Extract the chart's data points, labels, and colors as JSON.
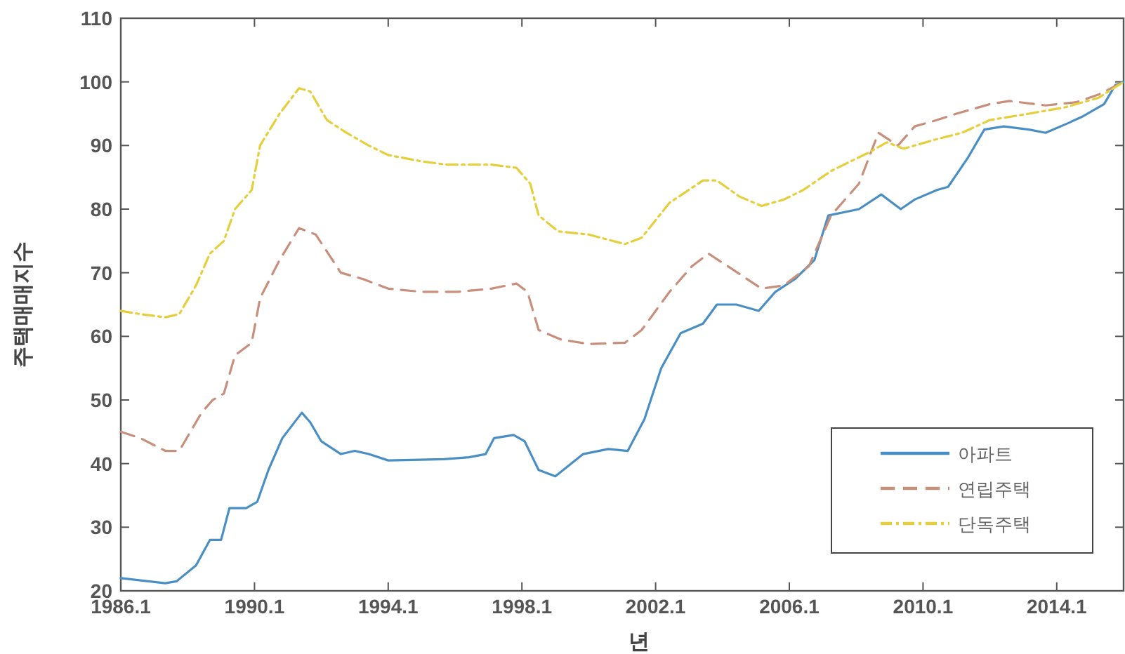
{
  "chart_data": {
    "type": "line",
    "xlabel": "년",
    "ylabel": "주택매매지수",
    "xlim": [
      "1986-01",
      "2016-01"
    ],
    "ylim": [
      20,
      110
    ],
    "xticks": [
      {
        "value": "1986-01",
        "label": "1986.1"
      },
      {
        "value": "1990-01",
        "label": "1990.1"
      },
      {
        "value": "1994-01",
        "label": "1994.1"
      },
      {
        "value": "1998-01",
        "label": "1998.1"
      },
      {
        "value": "2002-01",
        "label": "2002.1"
      },
      {
        "value": "2006-01",
        "label": "2006.1"
      },
      {
        "value": "2010-01",
        "label": "2010.1"
      },
      {
        "value": "2014-01",
        "label": "2014.1"
      }
    ],
    "yticks": [
      20,
      30,
      40,
      50,
      60,
      70,
      80,
      90,
      100,
      110
    ],
    "grid": false,
    "legend": "bottom right",
    "marker": "none",
    "series": [
      {
        "name": "아파트",
        "color": "#4a8fc4",
        "line_style": "solid",
        "x": [
          "1986-01",
          "1987-05",
          "1987-09",
          "1988-04",
          "1988-09",
          "1989-01",
          "1989-04",
          "1989-10",
          "1990-02",
          "1990-06",
          "1990-11",
          "1991-06",
          "1991-09",
          "1992-01",
          "1992-08",
          "1993-01",
          "1993-06",
          "1994-01",
          "1995-09",
          "1996-06",
          "1996-12",
          "1997-03",
          "1997-10",
          "1998-02",
          "1998-07",
          "1999-01",
          "1999-11",
          "2000-08",
          "2001-03",
          "2001-09",
          "2002-03",
          "2002-10",
          "2003-06",
          "2003-11",
          "2004-06",
          "2005-02",
          "2005-08",
          "2006-03",
          "2006-10",
          "2007-03",
          "2008-02",
          "2008-10",
          "2009-05",
          "2009-10",
          "2010-06",
          "2010-10",
          "2011-05",
          "2011-11",
          "2012-06",
          "2013-03",
          "2013-09",
          "2014-05",
          "2014-10",
          "2015-06",
          "2015-10",
          "2016-01"
        ],
        "values": [
          22,
          21.2,
          21.5,
          24,
          28,
          28,
          33,
          33,
          34,
          39,
          44,
          48,
          46.5,
          43.5,
          41.5,
          42,
          41.5,
          40.5,
          40.7,
          41,
          41.5,
          44,
          44.5,
          43.5,
          39,
          38,
          41.5,
          42.3,
          42,
          47,
          55,
          60.5,
          62,
          65,
          65,
          64,
          67,
          69,
          72,
          79,
          80,
          82.3,
          80,
          81.5,
          83,
          83.5,
          88,
          92.5,
          93,
          92.5,
          92,
          93.5,
          94.5,
          96.5,
          99.5,
          100
        ]
      },
      {
        "name": "연립주택",
        "color": "#c8907c",
        "line_style": "dashed",
        "x": [
          "1986-01",
          "1986-08",
          "1987-05",
          "1987-10",
          "1988-06",
          "1988-10",
          "1989-02",
          "1989-06",
          "1989-12",
          "1990-03",
          "1990-10",
          "1991-05",
          "1991-11",
          "1992-08",
          "1993-04",
          "1994-01",
          "1995-01",
          "1996-02",
          "1997-02",
          "1997-11",
          "1998-03",
          "1998-07",
          "1999-03",
          "2000-01",
          "2001-02",
          "2001-08",
          "2002-06",
          "2003-02",
          "2003-08",
          "2004-03",
          "2005-03",
          "2005-11",
          "2006-08",
          "2007-04",
          "2008-02",
          "2008-09",
          "2009-04",
          "2009-10",
          "2010-06",
          "2011-01",
          "2012-01",
          "2012-08",
          "2013-09",
          "2014-08",
          "2015-04",
          "2016-01"
        ],
        "values": [
          45,
          44,
          42,
          42,
          48,
          50,
          51,
          57,
          59,
          66,
          72,
          77,
          76,
          70,
          69,
          67.5,
          67,
          67,
          67.5,
          68.3,
          67,
          61,
          59.5,
          58.8,
          59,
          61,
          67,
          71,
          73,
          71,
          67.5,
          68,
          71,
          79,
          84,
          92,
          90,
          93,
          94,
          95,
          96.5,
          97,
          96.3,
          96.8,
          98,
          100
        ]
      },
      {
        "name": "단독주택",
        "color": "#e6cf3c",
        "line_style": "dashdot",
        "x": [
          "1986-01",
          "1986-08",
          "1987-05",
          "1987-10",
          "1988-04",
          "1988-09",
          "1989-02",
          "1989-06",
          "1989-12",
          "1990-03",
          "1990-10",
          "1991-05",
          "1991-09",
          "1992-03",
          "1992-10",
          "1993-06",
          "1994-01",
          "1995-01",
          "1995-10",
          "1997-02",
          "1997-11",
          "1998-04",
          "1998-07",
          "1999-02",
          "2000-01",
          "2001-02",
          "2001-08",
          "2002-06",
          "2003-06",
          "2003-11",
          "2004-07",
          "2005-03",
          "2005-11",
          "2006-06",
          "2007-04",
          "2008-06",
          "2008-12",
          "2009-06",
          "2010-06",
          "2011-03",
          "2012-01",
          "2013-03",
          "2014-04",
          "2015-04",
          "2016-01"
        ],
        "values": [
          64,
          63.5,
          63,
          63.5,
          68,
          73,
          75,
          80,
          83,
          90,
          95,
          99,
          98.5,
          94,
          92,
          90,
          88.5,
          87.5,
          87,
          87,
          86.5,
          84,
          79,
          76.5,
          76,
          74.5,
          75.5,
          81,
          84.5,
          84.5,
          82,
          80.5,
          81.5,
          83,
          86,
          89,
          90.5,
          89.5,
          91,
          92,
          94,
          95,
          96,
          97.5,
          100
        ]
      }
    ]
  }
}
